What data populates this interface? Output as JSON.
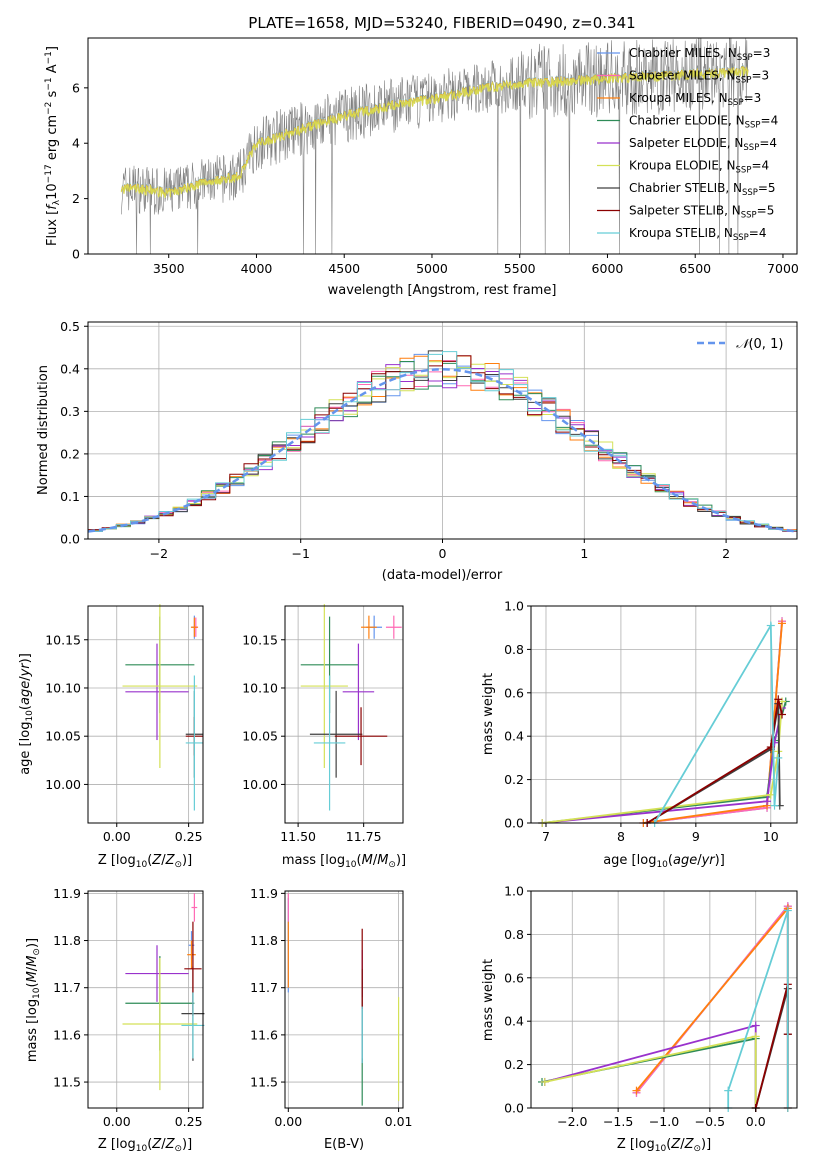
{
  "colors": {
    "Chabrier MILES": "#6495ed",
    "Salpeter MILES": "#ff69b4",
    "Kroupa MILES": "#ff7f0e",
    "Chabrier ELODIE": "#2e8b57",
    "Salpeter ELODIE": "#9932cc",
    "Kroupa ELODIE": "#d4e157",
    "Chabrier STELIB": "#404040",
    "Salpeter STELIB": "#8b0000",
    "Kroupa STELIB": "#66cdd6"
  },
  "chart_data": [
    {
      "id": "spectrum",
      "type": "line",
      "title": "PLATE=1658, MJD=53240, FIBERID=0490, z=0.341",
      "xlabel": "wavelength [Angstrom, rest frame]",
      "ylabel": "Flux [fλ10⁻¹⁷ erg cm⁻² s⁻¹ A⁻¹]",
      "xlim": [
        3040,
        7080
      ],
      "ylim": [
        0,
        7.8
      ],
      "xticks": [
        3500,
        4000,
        4500,
        5000,
        5500,
        6000,
        6500,
        7000
      ],
      "yticks": [
        0,
        2,
        4,
        6
      ],
      "legend_position": "upper right",
      "legend": [
        {
          "model": "Chabrier MILES",
          "label": "Chabrier MILES, N",
          "sub": "SSP",
          "tail": "=3"
        },
        {
          "model": "Salpeter MILES",
          "label": "Salpeter MILES, N",
          "sub": "SSP",
          "tail": "=3"
        },
        {
          "model": "Kroupa MILES",
          "label": "Kroupa MILES, N",
          "sub": "SSP",
          "tail": "=3"
        },
        {
          "model": "Chabrier ELODIE",
          "label": "Chabrier ELODIE, N",
          "sub": "SSP",
          "tail": "=4"
        },
        {
          "model": "Salpeter ELODIE",
          "label": "Salpeter ELODIE, N",
          "sub": "SSP",
          "tail": "=4"
        },
        {
          "model": "Kroupa ELODIE",
          "label": "Kroupa ELODIE, N",
          "sub": "SSP",
          "tail": "=4"
        },
        {
          "model": "Chabrier STELIB",
          "label": "Chabrier STELIB, N",
          "sub": "SSP",
          "tail": "=5"
        },
        {
          "model": "Salpeter STELIB",
          "label": "Salpeter STELIB, N",
          "sub": "SSP",
          "tail": "=5"
        },
        {
          "model": "Kroupa STELIB",
          "label": "Kroupa STELIB, N",
          "sub": "SSP",
          "tail": "=4"
        }
      ],
      "data_trend": {
        "x": [
          3200,
          3300,
          3500,
          3700,
          3900,
          4000,
          4200,
          4500,
          4800,
          5000,
          5300,
          5600,
          5900,
          6200,
          6500,
          6800
        ],
        "y": [
          2.3,
          2.4,
          2.2,
          2.6,
          2.8,
          4.0,
          4.4,
          5.0,
          5.4,
          5.6,
          6.0,
          6.2,
          6.3,
          6.4,
          6.5,
          6.6
        ]
      },
      "data_range": [
        3230,
        6800
      ]
    },
    {
      "id": "residuals",
      "type": "histogram",
      "xlabel": "(data-model)/error",
      "ylabel": "Normed distribution",
      "xlim": [
        -2.5,
        2.5
      ],
      "ylim": [
        0,
        0.51
      ],
      "xticks": [
        -2,
        -1,
        0,
        1,
        2
      ],
      "yticks": [
        0,
        0.1,
        0.2,
        0.3,
        0.4,
        0.5
      ],
      "bin_width": 0.1,
      "reference": {
        "label": "N(0,1)",
        "mu": 0,
        "sigma": 1,
        "color": "#6495ed"
      },
      "legend_position": "upper right"
    },
    {
      "id": "age_vs_Z",
      "type": "scatter",
      "xlabel": "Z [log10(Z/Z⊙)]",
      "ylabel": "age  [log10(age/yr)]",
      "xlim": [
        -0.1,
        0.3
      ],
      "ylim": [
        9.96,
        10.185
      ],
      "xticks": [
        0.0,
        0.25
      ],
      "yticks": [
        10.0,
        10.05,
        10.1,
        10.15
      ],
      "points": [
        {
          "model": "Chabrier MILES",
          "x": 0.27,
          "y": 10.163,
          "xerr": 0.01,
          "yerr": 0.012
        },
        {
          "model": "Salpeter MILES",
          "x": 0.275,
          "y": 10.163,
          "xerr": 0.008,
          "yerr": 0.01
        },
        {
          "model": "Kroupa MILES",
          "x": 0.27,
          "y": 10.163,
          "xerr": 0.012,
          "yerr": 0.01
        },
        {
          "model": "Chabrier ELODIE",
          "x": 0.15,
          "y": 10.124,
          "xerr": 0.12,
          "yerr": 0.05
        },
        {
          "model": "Salpeter ELODIE",
          "x": 0.14,
          "y": 10.096,
          "xerr": 0.11,
          "yerr": 0.05
        },
        {
          "model": "Kroupa ELODIE",
          "x": 0.15,
          "y": 10.102,
          "xerr": 0.13,
          "yerr": 0.085
        },
        {
          "model": "Chabrier STELIB",
          "x": 0.27,
          "y": 10.052,
          "xerr": 0.03,
          "yerr": 0.045
        },
        {
          "model": "Salpeter STELIB",
          "x": 0.27,
          "y": 10.05,
          "xerr": 0.03,
          "yerr": 0.02
        },
        {
          "model": "Kroupa STELIB",
          "x": 0.27,
          "y": 10.043,
          "xerr": 0.03,
          "yerr": 0.07
        }
      ]
    },
    {
      "id": "age_vs_mass",
      "type": "scatter",
      "xlabel": "mass [log10(M/M⊙)]",
      "ylabel": "",
      "xlim": [
        11.45,
        11.9
      ],
      "ylim": [
        9.96,
        10.185
      ],
      "xticks": [
        11.5,
        11.75
      ],
      "yticks": [
        10.0,
        10.05,
        10.1,
        10.15
      ],
      "points": [
        {
          "model": "Chabrier MILES",
          "x": 11.79,
          "y": 10.163,
          "xerr": 0.03,
          "yerr": 0.012
        },
        {
          "model": "Salpeter MILES",
          "x": 11.865,
          "y": 10.163,
          "xerr": 0.03,
          "yerr": 0.012
        },
        {
          "model": "Kroupa MILES",
          "x": 11.77,
          "y": 10.163,
          "xerr": 0.03,
          "yerr": 0.012
        },
        {
          "model": "Chabrier ELODIE",
          "x": 11.62,
          "y": 10.124,
          "xerr": 0.11,
          "yerr": 0.05
        },
        {
          "model": "Salpeter ELODIE",
          "x": 11.73,
          "y": 10.096,
          "xerr": 0.06,
          "yerr": 0.05
        },
        {
          "model": "Kroupa ELODIE",
          "x": 11.6,
          "y": 10.102,
          "xerr": 0.09,
          "yerr": 0.085
        },
        {
          "model": "Chabrier STELIB",
          "x": 11.645,
          "y": 10.052,
          "xerr": 0.1,
          "yerr": 0.045
        },
        {
          "model": "Salpeter STELIB",
          "x": 11.74,
          "y": 10.05,
          "xerr": 0.1,
          "yerr": 0.03
        },
        {
          "model": "Kroupa STELIB",
          "x": 11.62,
          "y": 10.043,
          "xerr": 0.06,
          "yerr": 0.07
        }
      ]
    },
    {
      "id": "massweight_vs_age",
      "type": "line",
      "xlabel": "age  [log10(age/yr)]",
      "ylabel": "mass weight",
      "xlim": [
        6.8,
        10.35
      ],
      "ylim": [
        0,
        1.0
      ],
      "xticks": [
        7,
        8,
        9,
        10
      ],
      "yticks": [
        0,
        0.2,
        0.4,
        0.6,
        0.8,
        1.0
      ],
      "series": [
        {
          "model": "Chabrier MILES",
          "x": [
            8.3,
            9.95,
            10.15
          ],
          "y": [
            0.0,
            0.07,
            0.93
          ]
        },
        {
          "model": "Salpeter MILES",
          "x": [
            8.3,
            9.95,
            10.15
          ],
          "y": [
            0.0,
            0.07,
            0.93
          ]
        },
        {
          "model": "Kroupa MILES",
          "x": [
            8.3,
            9.95,
            10.15
          ],
          "y": [
            0.0,
            0.08,
            0.92
          ]
        },
        {
          "model": "Chabrier ELODIE",
          "x": [
            6.95,
            9.95,
            10.05,
            10.2
          ],
          "y": [
            0.0,
            0.12,
            0.38,
            0.56
          ]
        },
        {
          "model": "Salpeter ELODIE",
          "x": [
            6.95,
            9.95,
            10.05,
            10.15
          ],
          "y": [
            0.0,
            0.1,
            0.37,
            0.53
          ]
        },
        {
          "model": "Kroupa ELODIE",
          "x": [
            6.95,
            10.0,
            10.1,
            10.15
          ],
          "y": [
            0.0,
            0.13,
            0.33,
            0.56
          ]
        },
        {
          "model": "Chabrier STELIB",
          "x": [
            8.35,
            10.0,
            10.1,
            10.12
          ],
          "y": [
            0.0,
            0.34,
            0.55,
            0.08
          ]
        },
        {
          "model": "Salpeter STELIB",
          "x": [
            8.35,
            10.0,
            10.1,
            10.15
          ],
          "y": [
            0.0,
            0.35,
            0.57,
            0.5
          ]
        },
        {
          "model": "Kroupa STELIB",
          "x": [
            8.45,
            10.0,
            10.05,
            10.1
          ],
          "y": [
            0.0,
            0.91,
            0.08,
            0.3
          ]
        }
      ]
    },
    {
      "id": "mass_vs_Z",
      "type": "scatter",
      "xlabel": "Z [log10(Z/Z⊙)]",
      "ylabel": "mass [log10(M/M⊙)]",
      "xlim": [
        -0.1,
        0.3
      ],
      "ylim": [
        11.445,
        11.905
      ],
      "xticks": [
        0.0,
        0.25
      ],
      "yticks": [
        11.5,
        11.6,
        11.7,
        11.8,
        11.9
      ],
      "points": [
        {
          "model": "Chabrier MILES",
          "x": 0.26,
          "y": 11.79,
          "xerr": 0.01,
          "yerr": 0.03
        },
        {
          "model": "Salpeter MILES",
          "x": 0.27,
          "y": 11.87,
          "xerr": 0.01,
          "yerr": 0.03
        },
        {
          "model": "Kroupa MILES",
          "x": 0.26,
          "y": 11.77,
          "xerr": 0.015,
          "yerr": 0.03
        },
        {
          "model": "Chabrier ELODIE",
          "x": 0.15,
          "y": 11.667,
          "xerr": 0.12,
          "yerr": 0.1
        },
        {
          "model": "Salpeter ELODIE",
          "x": 0.14,
          "y": 11.73,
          "xerr": 0.11,
          "yerr": 0.06
        },
        {
          "model": "Kroupa ELODIE",
          "x": 0.15,
          "y": 11.623,
          "xerr": 0.13,
          "yerr": 0.14
        },
        {
          "model": "Chabrier STELIB",
          "x": 0.265,
          "y": 11.645,
          "xerr": 0.04,
          "yerr": 0.1
        },
        {
          "model": "Salpeter STELIB",
          "x": 0.265,
          "y": 11.74,
          "xerr": 0.03,
          "yerr": 0.1
        },
        {
          "model": "Kroupa STELIB",
          "x": 0.265,
          "y": 11.62,
          "xerr": 0.04,
          "yerr": 0.07
        }
      ]
    },
    {
      "id": "mass_vs_EBV",
      "type": "scatter",
      "xlabel": "E(B-V)",
      "ylabel": "",
      "xlim": [
        -0.0003,
        0.0104
      ],
      "ylim": [
        11.445,
        11.905
      ],
      "xticks": [
        0.0,
        0.01
      ],
      "yticks": [
        11.5,
        11.6,
        11.7,
        11.8,
        11.9
      ],
      "points": [
        {
          "model": "Chabrier MILES",
          "x": 0.0,
          "y": 11.79,
          "xerr": 0,
          "yerr": 0.1
        },
        {
          "model": "Salpeter MILES",
          "x": 0.0,
          "y": 11.87,
          "xerr": 0,
          "yerr": 0.03
        },
        {
          "model": "Kroupa MILES",
          "x": 0.0,
          "y": 11.77,
          "xerr": 0,
          "yerr": 0.07
        },
        {
          "model": "Chabrier ELODIE",
          "x": 0.0067,
          "y": 11.5,
          "xerr": 0,
          "yerr": 0.05
        },
        {
          "model": "Salpeter ELODIE",
          "x": 0.0067,
          "y": 11.73,
          "xerr": 0,
          "yerr": 0.05
        },
        {
          "model": "Kroupa ELODIE",
          "x": 0.01,
          "y": 11.57,
          "xerr": 0,
          "yerr": 0.11
        },
        {
          "model": "Chabrier STELIB",
          "x": 0.0067,
          "y": 11.64,
          "xerr": 0,
          "yerr": 0.1
        },
        {
          "model": "Salpeter STELIB",
          "x": 0.0067,
          "y": 11.74,
          "xerr": 0,
          "yerr": 0.085
        },
        {
          "model": "Kroupa STELIB",
          "x": 0.0067,
          "y": 11.6,
          "xerr": 0,
          "yerr": 0.06
        }
      ]
    },
    {
      "id": "massweight_vs_Z",
      "type": "line",
      "xlabel": "Z [log10(Z/Z⊙)]",
      "ylabel": "mass weight",
      "xlim": [
        -2.45,
        0.45
      ],
      "ylim": [
        0,
        1.0
      ],
      "xticks": [
        -2.0,
        -1.5,
        -1.0,
        -0.5,
        0.0
      ],
      "yticks": [
        0,
        0.2,
        0.4,
        0.6,
        0.8,
        1.0
      ],
      "series": [
        {
          "model": "Chabrier MILES",
          "x": [
            -1.3,
            0.35,
            0.35
          ],
          "y": [
            0.07,
            0.93,
            0.0
          ]
        },
        {
          "model": "Salpeter MILES",
          "x": [
            -1.3,
            0.35,
            0.35
          ],
          "y": [
            0.07,
            0.93,
            0.0
          ]
        },
        {
          "model": "Kroupa MILES",
          "x": [
            -1.3,
            0.35,
            0.35
          ],
          "y": [
            0.08,
            0.92,
            0.0
          ]
        },
        {
          "model": "Chabrier ELODIE",
          "x": [
            -2.33,
            0.0,
            0.0
          ],
          "y": [
            0.12,
            0.32,
            0.0
          ]
        },
        {
          "model": "Salpeter ELODIE",
          "x": [
            -2.3,
            0.0,
            0.0
          ],
          "y": [
            0.12,
            0.38,
            0.0
          ]
        },
        {
          "model": "Kroupa ELODIE",
          "x": [
            -2.3,
            0.0,
            0.0
          ],
          "y": [
            0.12,
            0.33,
            0.0
          ]
        },
        {
          "model": "Chabrier STELIB",
          "x": [
            0.0,
            0.35,
            0.35
          ],
          "y": [
            0.0,
            0.55,
            0.34
          ]
        },
        {
          "model": "Salpeter STELIB",
          "x": [
            0.0,
            0.35,
            0.35
          ],
          "y": [
            0.0,
            0.57,
            0.34
          ]
        },
        {
          "model": "Kroupa STELIB",
          "x": [
            -0.3,
            -0.3,
            0.35,
            0.35
          ],
          "y": [
            0.0,
            0.08,
            0.91,
            0.0
          ]
        }
      ]
    }
  ]
}
